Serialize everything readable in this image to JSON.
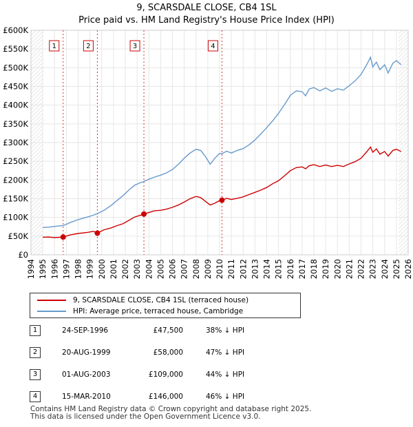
{
  "chart_data": {
    "type": "line",
    "title": "9, SCARSDALE CLOSE, CB4 1SL",
    "subtitle": "Price paid vs. HM Land Registry's House Price Index (HPI)",
    "xlim": [
      1994,
      2026
    ],
    "ylim": [
      0,
      600000
    ],
    "x_ticks": [
      "1994",
      "1995",
      "1996",
      "1997",
      "1998",
      "1999",
      "2000",
      "2001",
      "2002",
      "2003",
      "2004",
      "2005",
      "2006",
      "2007",
      "2008",
      "2009",
      "2010",
      "2011",
      "2012",
      "2013",
      "2014",
      "2015",
      "2016",
      "2017",
      "2018",
      "2019",
      "2020",
      "2021",
      "2022",
      "2023",
      "2024",
      "2025",
      "2026"
    ],
    "y_ticks": [
      {
        "value": 0,
        "label": "£0"
      },
      {
        "value": 50000,
        "label": "£50K"
      },
      {
        "value": 100000,
        "label": "£100K"
      },
      {
        "value": 150000,
        "label": "£150K"
      },
      {
        "value": 200000,
        "label": "£200K"
      },
      {
        "value": 250000,
        "label": "£250K"
      },
      {
        "value": 300000,
        "label": "£300K"
      },
      {
        "value": 350000,
        "label": "£350K"
      },
      {
        "value": 400000,
        "label": "£400K"
      },
      {
        "value": 450000,
        "label": "£450K"
      },
      {
        "value": 500000,
        "label": "£500K"
      },
      {
        "value": 550000,
        "label": "£550K"
      },
      {
        "value": 600000,
        "label": "£600K"
      }
    ],
    "series": [
      {
        "name": "9, SCARSDALE CLOSE, CB4 1SL (terraced house)",
        "color": "#cc0000",
        "points": [
          [
            1995.0,
            47000
          ],
          [
            1995.5,
            47500
          ],
          [
            1996.0,
            46000
          ],
          [
            1996.73,
            47500
          ],
          [
            1997.3,
            53000
          ],
          [
            1998.0,
            57000
          ],
          [
            1998.8,
            60000
          ],
          [
            1999.3,
            63000
          ],
          [
            1999.63,
            58000
          ],
          [
            2000.2,
            67000
          ],
          [
            2000.8,
            72000
          ],
          [
            2001.3,
            78000
          ],
          [
            2001.8,
            83000
          ],
          [
            2002.3,
            92000
          ],
          [
            2002.8,
            101000
          ],
          [
            2003.3,
            106000
          ],
          [
            2003.58,
            109000
          ],
          [
            2004.0,
            113000
          ],
          [
            2004.5,
            118000
          ],
          [
            2005.0,
            119000
          ],
          [
            2005.5,
            122000
          ],
          [
            2006.0,
            127000
          ],
          [
            2006.5,
            133000
          ],
          [
            2007.0,
            141000
          ],
          [
            2007.5,
            150000
          ],
          [
            2008.0,
            156000
          ],
          [
            2008.4,
            153000
          ],
          [
            2008.8,
            143000
          ],
          [
            2009.2,
            133000
          ],
          [
            2009.6,
            138000
          ],
          [
            2010.0,
            145000
          ],
          [
            2010.2,
            146000
          ],
          [
            2010.6,
            151000
          ],
          [
            2011.0,
            148000
          ],
          [
            2011.5,
            151000
          ],
          [
            2012.0,
            155000
          ],
          [
            2012.5,
            161000
          ],
          [
            2013.0,
            167000
          ],
          [
            2013.5,
            173000
          ],
          [
            2014.0,
            180000
          ],
          [
            2014.5,
            190000
          ],
          [
            2015.0,
            198000
          ],
          [
            2015.5,
            211000
          ],
          [
            2016.0,
            225000
          ],
          [
            2016.5,
            233000
          ],
          [
            2017.0,
            235000
          ],
          [
            2017.3,
            230000
          ],
          [
            2017.6,
            238000
          ],
          [
            2018.0,
            241000
          ],
          [
            2018.5,
            236000
          ],
          [
            2019.0,
            240000
          ],
          [
            2019.5,
            236000
          ],
          [
            2020.0,
            239000
          ],
          [
            2020.5,
            236000
          ],
          [
            2021.0,
            243000
          ],
          [
            2021.5,
            249000
          ],
          [
            2022.0,
            258000
          ],
          [
            2022.5,
            276000
          ],
          [
            2022.8,
            288000
          ],
          [
            2023.0,
            274000
          ],
          [
            2023.3,
            283000
          ],
          [
            2023.6,
            269000
          ],
          [
            2024.0,
            276000
          ],
          [
            2024.3,
            264000
          ],
          [
            2024.7,
            279000
          ],
          [
            2025.0,
            282000
          ],
          [
            2025.4,
            276000
          ]
        ]
      },
      {
        "name": "HPI: Average price, terraced house, Cambridge",
        "color": "#6699cc",
        "points": [
          [
            1995.0,
            73000
          ],
          [
            1995.5,
            74000
          ],
          [
            1996.0,
            76000
          ],
          [
            1996.73,
            78000
          ],
          [
            1997.3,
            86000
          ],
          [
            1998.0,
            94000
          ],
          [
            1998.8,
            101000
          ],
          [
            1999.3,
            106000
          ],
          [
            1999.63,
            110000
          ],
          [
            2000.2,
            119000
          ],
          [
            2000.8,
            132000
          ],
          [
            2001.3,
            145000
          ],
          [
            2001.8,
            158000
          ],
          [
            2002.3,
            173000
          ],
          [
            2002.8,
            186000
          ],
          [
            2003.3,
            193000
          ],
          [
            2003.58,
            196000
          ],
          [
            2004.0,
            202000
          ],
          [
            2004.5,
            208000
          ],
          [
            2005.0,
            213000
          ],
          [
            2005.5,
            219000
          ],
          [
            2006.0,
            228000
          ],
          [
            2006.5,
            242000
          ],
          [
            2007.0,
            258000
          ],
          [
            2007.5,
            272000
          ],
          [
            2008.0,
            282000
          ],
          [
            2008.4,
            279000
          ],
          [
            2008.8,
            263000
          ],
          [
            2009.2,
            242000
          ],
          [
            2009.6,
            258000
          ],
          [
            2010.0,
            271000
          ],
          [
            2010.2,
            270000
          ],
          [
            2010.6,
            277000
          ],
          [
            2011.0,
            272000
          ],
          [
            2011.5,
            279000
          ],
          [
            2012.0,
            284000
          ],
          [
            2012.5,
            294000
          ],
          [
            2013.0,
            307000
          ],
          [
            2013.5,
            323000
          ],
          [
            2014.0,
            340000
          ],
          [
            2014.5,
            358000
          ],
          [
            2015.0,
            378000
          ],
          [
            2015.5,
            401000
          ],
          [
            2016.0,
            426000
          ],
          [
            2016.5,
            438000
          ],
          [
            2017.0,
            436000
          ],
          [
            2017.3,
            425000
          ],
          [
            2017.6,
            443000
          ],
          [
            2018.0,
            447000
          ],
          [
            2018.5,
            438000
          ],
          [
            2019.0,
            446000
          ],
          [
            2019.5,
            437000
          ],
          [
            2020.0,
            444000
          ],
          [
            2020.5,
            440000
          ],
          [
            2021.0,
            452000
          ],
          [
            2021.5,
            465000
          ],
          [
            2022.0,
            482000
          ],
          [
            2022.5,
            509000
          ],
          [
            2022.8,
            528000
          ],
          [
            2023.0,
            502000
          ],
          [
            2023.3,
            515000
          ],
          [
            2023.6,
            495000
          ],
          [
            2024.0,
            508000
          ],
          [
            2024.3,
            486000
          ],
          [
            2024.7,
            512000
          ],
          [
            2025.0,
            519000
          ],
          [
            2025.4,
            508000
          ]
        ]
      }
    ],
    "sales": [
      {
        "label": "1",
        "x": 1996.73,
        "value": 47500
      },
      {
        "label": "2",
        "x": 1999.63,
        "value": 58000
      },
      {
        "label": "3",
        "x": 2003.58,
        "value": 109000
      },
      {
        "label": "4",
        "x": 2010.2,
        "value": 146000
      }
    ],
    "hatch_start": 1994,
    "hatch_end": 1995,
    "hatch_right_start": 2025.2
  },
  "legend": {
    "property": "9, SCARSDALE CLOSE, CB4 1SL (terraced house)",
    "hpi": "HPI: Average price, terraced house, Cambridge",
    "property_color": "#cc0000",
    "hpi_color": "#6699cc"
  },
  "sales_table": [
    {
      "num": "1",
      "date": "24-SEP-1996",
      "price": "£47,500",
      "hpi": "38% ↓ HPI"
    },
    {
      "num": "2",
      "date": "20-AUG-1999",
      "price": "£58,000",
      "hpi": "47% ↓ HPI"
    },
    {
      "num": "3",
      "date": "01-AUG-2003",
      "price": "£109,000",
      "hpi": "44% ↓ HPI"
    },
    {
      "num": "4",
      "date": "15-MAR-2010",
      "price": "£146,000",
      "hpi": "46% ↓ HPI"
    }
  ],
  "footer": {
    "line1": "Contains HM Land Registry data © Crown copyright and database right 2025.",
    "line2": "This data is licensed under the Open Government Licence v3.0."
  }
}
